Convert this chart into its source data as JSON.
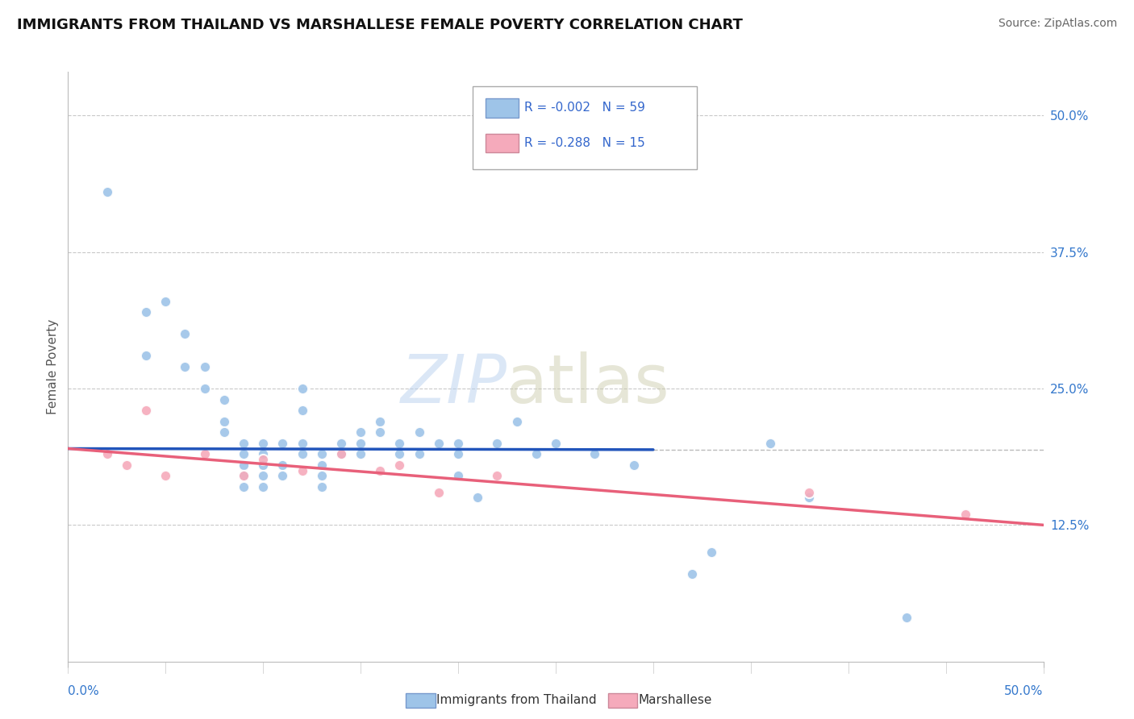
{
  "title": "IMMIGRANTS FROM THAILAND VS MARSHALLESE FEMALE POVERTY CORRELATION CHART",
  "source": "Source: ZipAtlas.com",
  "ylabel": "Female Poverty",
  "ytick_labels": [
    "50.0%",
    "37.5%",
    "25.0%",
    "12.5%"
  ],
  "ytick_values": [
    0.5,
    0.375,
    0.25,
    0.125
  ],
  "xlim": [
    0.0,
    0.5
  ],
  "ylim": [
    0.0,
    0.54
  ],
  "legend_blue": "R = -0.002   N = 59",
  "legend_pink": "R = -0.288   N = 15",
  "legend_label_blue": "Immigrants from Thailand",
  "legend_label_pink": "Marshallese",
  "blue_color": "#9ec4e8",
  "pink_color": "#f5aabb",
  "trendline_blue_color": "#2255bb",
  "trendline_pink_color": "#e8607a",
  "background_color": "#ffffff",
  "grid_color": "#bbbbbb",
  "blue_scatter_x": [
    0.02,
    0.04,
    0.04,
    0.05,
    0.06,
    0.06,
    0.07,
    0.07,
    0.08,
    0.08,
    0.08,
    0.09,
    0.09,
    0.09,
    0.09,
    0.09,
    0.1,
    0.1,
    0.1,
    0.1,
    0.1,
    0.11,
    0.11,
    0.11,
    0.12,
    0.12,
    0.12,
    0.12,
    0.13,
    0.13,
    0.13,
    0.13,
    0.14,
    0.14,
    0.15,
    0.15,
    0.15,
    0.16,
    0.16,
    0.17,
    0.17,
    0.18,
    0.18,
    0.19,
    0.2,
    0.2,
    0.2,
    0.21,
    0.22,
    0.23,
    0.24,
    0.25,
    0.27,
    0.29,
    0.32,
    0.33,
    0.36,
    0.38,
    0.43
  ],
  "blue_scatter_y": [
    0.43,
    0.32,
    0.28,
    0.33,
    0.3,
    0.27,
    0.27,
    0.25,
    0.24,
    0.22,
    0.21,
    0.2,
    0.19,
    0.18,
    0.17,
    0.16,
    0.2,
    0.19,
    0.18,
    0.17,
    0.16,
    0.2,
    0.18,
    0.17,
    0.25,
    0.23,
    0.2,
    0.19,
    0.19,
    0.18,
    0.17,
    0.16,
    0.2,
    0.19,
    0.21,
    0.2,
    0.19,
    0.22,
    0.21,
    0.2,
    0.19,
    0.21,
    0.19,
    0.2,
    0.2,
    0.19,
    0.17,
    0.15,
    0.2,
    0.22,
    0.19,
    0.2,
    0.19,
    0.18,
    0.08,
    0.1,
    0.2,
    0.15,
    0.04
  ],
  "pink_scatter_x": [
    0.02,
    0.03,
    0.04,
    0.05,
    0.07,
    0.09,
    0.1,
    0.12,
    0.14,
    0.16,
    0.17,
    0.19,
    0.22,
    0.38,
    0.46
  ],
  "pink_scatter_y": [
    0.19,
    0.18,
    0.23,
    0.17,
    0.19,
    0.17,
    0.185,
    0.175,
    0.19,
    0.175,
    0.18,
    0.155,
    0.17,
    0.155,
    0.135
  ],
  "blue_trend_x": [
    0.0,
    0.3
  ],
  "blue_trend_y": [
    0.195,
    0.194
  ],
  "pink_trend_x": [
    0.0,
    0.5
  ],
  "pink_trend_y": [
    0.195,
    0.125
  ],
  "dashed_line_y": 0.194,
  "marker_size": 90,
  "marker_linewidth": 1.5
}
